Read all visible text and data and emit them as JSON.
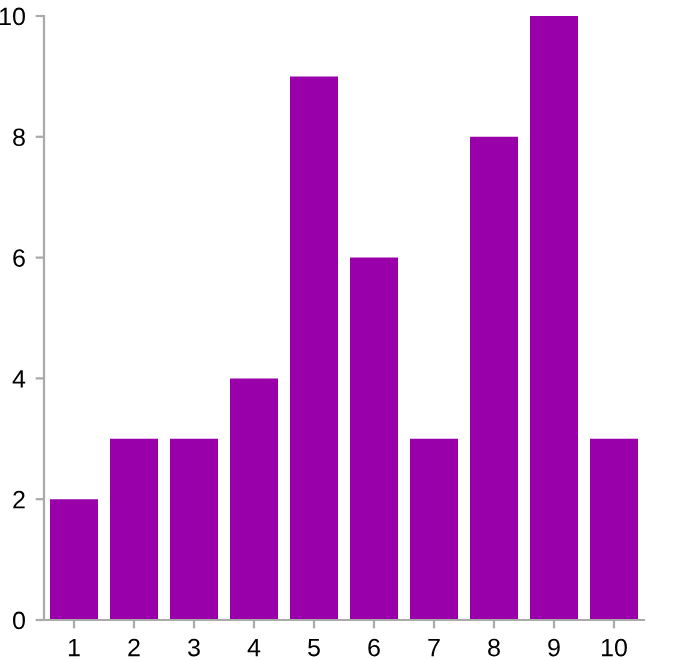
{
  "chart_data": {
    "type": "bar",
    "categories": [
      "1",
      "2",
      "3",
      "4",
      "5",
      "6",
      "7",
      "8",
      "9",
      "10"
    ],
    "values": [
      2,
      3,
      3,
      4,
      9,
      6,
      3,
      8,
      10,
      3
    ],
    "color": "#9900aa",
    "ylim": [
      0,
      10
    ],
    "yticks": [
      0,
      2,
      4,
      6,
      8,
      10
    ],
    "grid": false
  }
}
